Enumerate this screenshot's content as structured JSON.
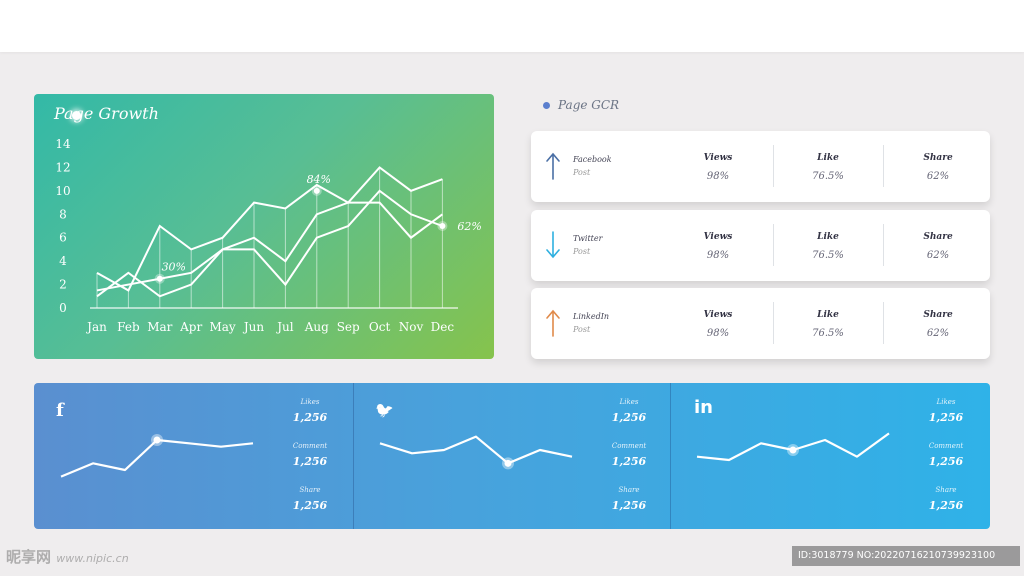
{
  "growth": {
    "title": "Page Growth",
    "annotations": [
      {
        "label": "30%",
        "month": "Mar",
        "value": 2.5
      },
      {
        "label": "84%",
        "month": "Aug",
        "value": 10
      },
      {
        "label": "62%",
        "month": "Dec",
        "value": 7
      }
    ]
  },
  "chart_data": {
    "type": "line",
    "title": "Page Growth",
    "categories": [
      "Jan",
      "Feb",
      "Mar",
      "Apr",
      "May",
      "Jun",
      "Jul",
      "Aug",
      "Sep",
      "Oct",
      "Nov",
      "Dec"
    ],
    "yticks": [
      "0",
      "2",
      "4",
      "6",
      "8",
      "10",
      "12",
      "14"
    ],
    "ylim": [
      0,
      14
    ],
    "grid": "vertical",
    "series": [
      {
        "values": [
          3,
          1.5,
          7,
          5,
          6,
          9,
          8.5,
          10.5,
          9,
          12,
          10,
          11
        ]
      },
      {
        "values": [
          1,
          3,
          1,
          2,
          5,
          5,
          2,
          6,
          7,
          10,
          8,
          7
        ]
      },
      {
        "values": [
          1.5,
          2,
          2.5,
          3,
          5,
          6,
          4,
          8,
          9,
          9,
          6,
          8
        ]
      }
    ]
  },
  "gcr": {
    "title": "Page GCR",
    "cards": [
      {
        "network": "Facebook",
        "post": "Post",
        "arrow": "up",
        "arrow_color": "#4a6fa5",
        "stats": [
          {
            "label": "Views",
            "value": "98%"
          },
          {
            "label": "Like",
            "value": "76.5%"
          },
          {
            "label": "Share",
            "value": "62%"
          }
        ]
      },
      {
        "network": "Twitter",
        "post": "Post",
        "arrow": "down",
        "arrow_color": "#2eb0e0",
        "stats": [
          {
            "label": "Views",
            "value": "98%"
          },
          {
            "label": "Like",
            "value": "76.5%"
          },
          {
            "label": "Share",
            "value": "62%"
          }
        ]
      },
      {
        "network": "LinkedIn",
        "post": "Post",
        "arrow": "up",
        "arrow_color": "#e08a4a",
        "stats": [
          {
            "label": "Views",
            "value": "98%"
          },
          {
            "label": "Like",
            "value": "76.5%"
          },
          {
            "label": "Share",
            "value": "62%"
          }
        ]
      }
    ]
  },
  "social": [
    {
      "icon": "facebook-icon",
      "glyph": "f",
      "sparkline": [
        2,
        4,
        3,
        7.5,
        7,
        6.5,
        7
      ],
      "highlight_index": 3,
      "stats": [
        {
          "label": "Likes",
          "value": "1,256"
        },
        {
          "label": "Comment",
          "value": "1,256"
        },
        {
          "label": "Share",
          "value": "1,256"
        }
      ]
    },
    {
      "icon": "twitter-icon",
      "glyph": "🐦",
      "sparkline": [
        7,
        5.5,
        6,
        8,
        4,
        6,
        5
      ],
      "highlight_index": 4,
      "stats": [
        {
          "label": "Likes",
          "value": "1,256"
        },
        {
          "label": "Comment",
          "value": "1,256"
        },
        {
          "label": "Share",
          "value": "1,256"
        }
      ]
    },
    {
      "icon": "linkedin-icon",
      "glyph": "in",
      "sparkline": [
        5,
        4.5,
        7,
        6,
        7.5,
        5,
        8.5
      ],
      "highlight_index": 3,
      "stats": [
        {
          "label": "Likes",
          "value": "1,256"
        },
        {
          "label": "Comment",
          "value": "1,256"
        },
        {
          "label": "Share",
          "value": "1,256"
        }
      ]
    }
  ],
  "watermark": {
    "left": "昵享网",
    "left_url": "www.nipic.cn",
    "right": "ID:3018779 NO:20220716210739923100"
  }
}
